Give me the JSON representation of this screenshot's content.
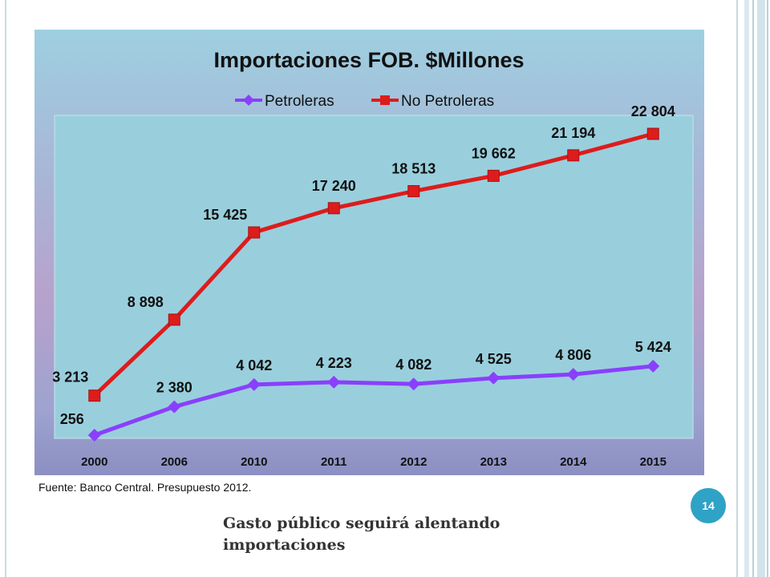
{
  "slide": {
    "source_note": "Fuente: Banco Central. Presupuesto 2012.",
    "page_number": "14",
    "caption": "Gasto público seguirá alentando importaciones"
  },
  "colors": {
    "petroleras": "#8a3ffc",
    "no_petroleras": "#dd1c1c",
    "badge": "#2ea3c5"
  },
  "chart_data": {
    "type": "line",
    "title": "Importaciones FOB. $Millones",
    "xlabel": "",
    "ylabel": "",
    "categories": [
      "2000",
      "2006",
      "2010",
      "2011",
      "2012",
      "2013",
      "2014",
      "2015"
    ],
    "ylim": [
      0,
      24000
    ],
    "legend": "top",
    "grid": false,
    "series": [
      {
        "name": "Petroleras",
        "marker": "diamond",
        "values": [
          256,
          2380,
          4042,
          4223,
          4082,
          4525,
          4806,
          5424
        ],
        "labels": [
          "256",
          "2 380",
          "4 042",
          "4 223",
          "4 082",
          "4 525",
          "4 806",
          "5 424"
        ]
      },
      {
        "name": "No Petroleras",
        "marker": "square",
        "values": [
          3213,
          8898,
          15425,
          17240,
          18513,
          19662,
          21194,
          22804
        ],
        "labels": [
          "3 213",
          "8 898",
          "15 425",
          "17 240",
          "18 513",
          "19 662",
          "21 194",
          "22 804"
        ]
      }
    ]
  }
}
